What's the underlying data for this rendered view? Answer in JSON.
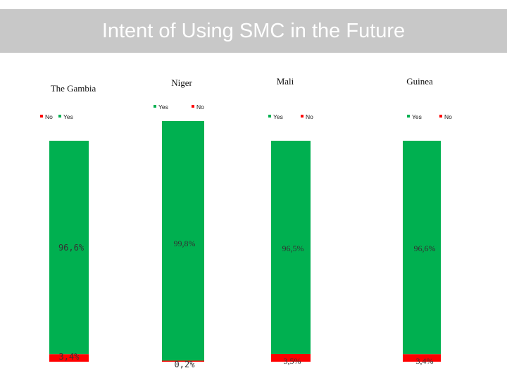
{
  "title": "Intent of Using SMC in the Future",
  "colors": {
    "yes": "#00b050",
    "no": "#ff0000",
    "title_bar": "#c8c8c8"
  },
  "legend": {
    "yes": "Yes",
    "no": "No"
  },
  "chart_data": [
    {
      "type": "bar",
      "stacked": true,
      "title": "The Gambia",
      "categories": [
        ""
      ],
      "series": [
        {
          "name": "Yes",
          "values": [
            96.6
          ],
          "label": "96,6%"
        },
        {
          "name": "No",
          "values": [
            3.4
          ],
          "label": "3,4%"
        }
      ],
      "ylim": [
        0,
        100
      ],
      "grid": false,
      "legend_position": "top-left",
      "legend_order": [
        "No",
        "Yes"
      ]
    },
    {
      "type": "bar",
      "stacked": true,
      "title": "Niger",
      "categories": [
        ""
      ],
      "series": [
        {
          "name": "Yes",
          "values": [
            99.8
          ],
          "label": "99,8%"
        },
        {
          "name": "No",
          "values": [
            0.2
          ],
          "label": "0,2%"
        }
      ],
      "ylim": [
        0,
        100
      ],
      "grid": false,
      "legend_position": "top",
      "legend_order": [
        "Yes",
        "No"
      ]
    },
    {
      "type": "bar",
      "stacked": true,
      "title": "Mali",
      "categories": [
        ""
      ],
      "series": [
        {
          "name": "Yes",
          "values": [
            96.5
          ],
          "label": "96,5%"
        },
        {
          "name": "No",
          "values": [
            3.5
          ],
          "label": "3,5%"
        }
      ],
      "ylim": [
        0,
        100
      ],
      "grid": false,
      "legend_position": "top",
      "legend_order": [
        "Yes",
        "No"
      ]
    },
    {
      "type": "bar",
      "stacked": true,
      "title": "Guinea",
      "categories": [
        ""
      ],
      "series": [
        {
          "name": "Yes",
          "values": [
            96.6
          ],
          "label": "96,6%"
        },
        {
          "name": "No",
          "values": [
            3.4
          ],
          "label": "3,4%"
        }
      ],
      "ylim": [
        0,
        100
      ],
      "grid": false,
      "legend_position": "top",
      "legend_order": [
        "Yes",
        "No"
      ]
    }
  ]
}
